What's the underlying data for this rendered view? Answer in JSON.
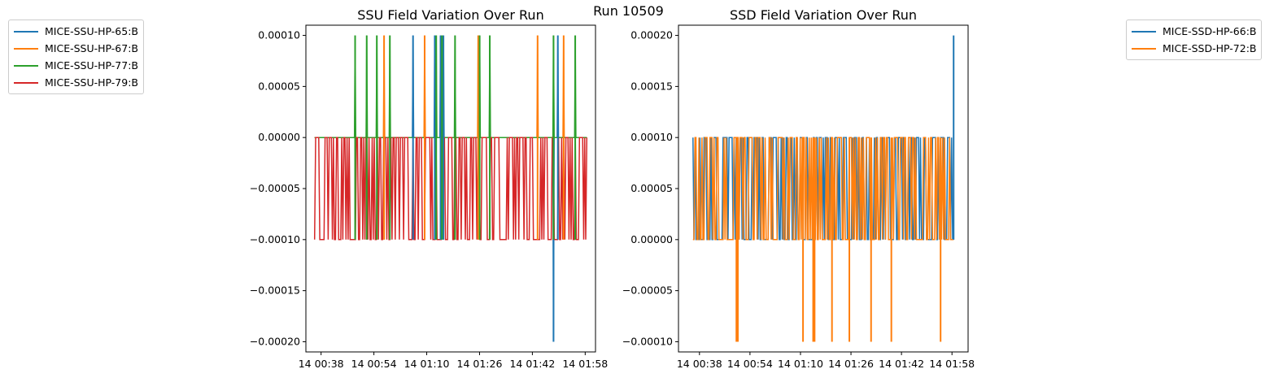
{
  "figure": {
    "suptitle": "Run 10509"
  },
  "chart_data": [
    {
      "type": "line",
      "title": "SSU Field Variation Over Run",
      "xlabel": "",
      "ylabel": "",
      "x_ticks": [
        "14 00:38",
        "14 00:54",
        "14 01:10",
        "14 01:26",
        "14 01:42",
        "14 01:58"
      ],
      "ylim": [
        -0.00021,
        0.00011
      ],
      "y_ticks": [
        "0.00010",
        "0.00005",
        "0.00000",
        "−0.00005",
        "−0.00010",
        "−0.00015",
        "−0.00020"
      ],
      "y_tick_values": [
        0.0001,
        5e-05,
        0,
        -5e-05,
        -0.0001,
        -0.00015,
        -0.0002
      ],
      "x_range": [
        0.03,
        0.97
      ],
      "legend_placement": "outside-left",
      "grid": false,
      "series": [
        {
          "name": "MICE-SSU-HP-65:B",
          "color": "#1f77b4",
          "base": 0,
          "spikes_up": [
            0.37,
            0.445,
            0.465,
            0.475,
            0.87
          ],
          "spikes_down": [
            0.855
          ]
        },
        {
          "name": "MICE-SSU-HP-67:B",
          "color": "#ff7f0e",
          "base": 0,
          "spikes_up": [
            0.27,
            0.41,
            0.595,
            0.8,
            0.89
          ],
          "spikes_down": []
        },
        {
          "name": "MICE-SSU-HP-77:B",
          "color": "#2ca02c",
          "base": 0,
          "spikes_up": [
            0.17,
            0.21,
            0.245,
            0.29,
            0.45,
            0.47,
            0.515,
            0.6,
            0.635,
            0.855,
            0.93
          ],
          "spikes_down": []
        },
        {
          "name": "MICE-SSU-HP-79:B",
          "color": "#d62728",
          "base": 0,
          "noise_band": [
            -0.0001,
            0
          ],
          "spikes_up": [],
          "spikes_down": []
        }
      ]
    },
    {
      "type": "line",
      "title": "SSD Field Variation Over Run",
      "xlabel": "",
      "ylabel": "",
      "x_ticks": [
        "14 00:38",
        "14 00:54",
        "14 01:10",
        "14 01:26",
        "14 01:42",
        "14 01:58"
      ],
      "ylim": [
        -0.00011,
        0.00021
      ],
      "y_ticks": [
        "0.00020",
        "0.00015",
        "0.00010",
        "0.00005",
        "0.00000",
        "−0.00005",
        "−0.00010"
      ],
      "y_tick_values": [
        0.0002,
        0.00015,
        0.0001,
        5e-05,
        0,
        -5e-05,
        -0.0001
      ],
      "x_range": [
        0.05,
        0.95
      ],
      "legend_placement": "outside-right",
      "grid": false,
      "series": [
        {
          "name": "MICE-SSD-HP-66:B",
          "color": "#1f77b4",
          "base": 0,
          "noise_band": [
            0,
            0.0001
          ],
          "spikes_up": [
            0.95
          ],
          "spikes_down": []
        },
        {
          "name": "MICE-SSD-HP-72:B",
          "color": "#ff7f0e",
          "base": 0,
          "noise_band": [
            0,
            0.0001
          ],
          "spikes_up": [],
          "spikes_down": [
            0.2,
            0.205,
            0.43,
            0.465,
            0.47,
            0.53,
            0.59,
            0.665,
            0.735,
            0.905
          ]
        }
      ]
    }
  ]
}
